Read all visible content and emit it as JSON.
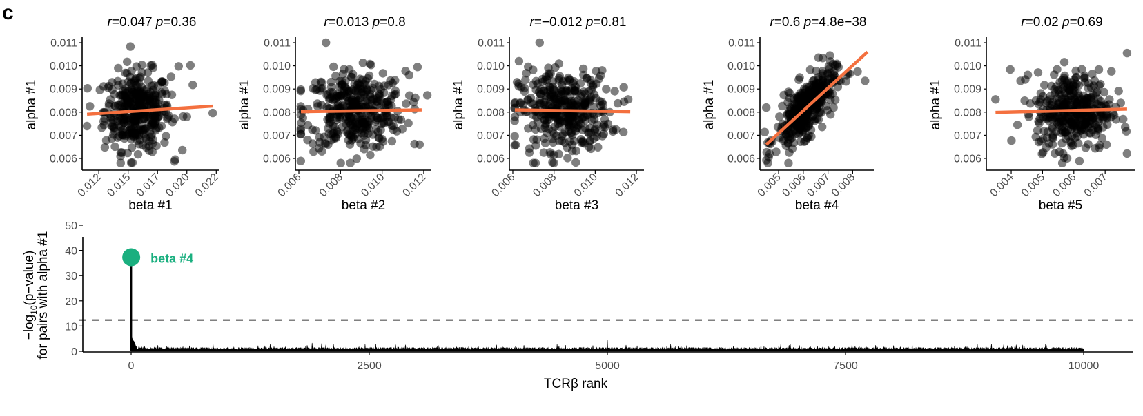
{
  "figure": {
    "panel_letter": "c"
  },
  "chart_data": [
    {
      "type": "scatter",
      "id": "panel-beta1",
      "title_r": "r",
      "title_r_value": "=0.047 ",
      "title_p": "p",
      "title_p_value": "=0.36",
      "xlabel": "beta #1",
      "ylabel": "alpha #1",
      "xlim": [
        0.0112,
        0.0226
      ],
      "ylim": [
        0.00555,
        0.01115
      ],
      "xticks": [
        0.0125,
        0.015,
        0.0175,
        0.02,
        0.0225
      ],
      "xtick_labels": [
        "0.012",
        "0.015",
        "0.017",
        "0.020",
        "0.022"
      ],
      "yticks": [
        0.006,
        0.007,
        0.008,
        0.009,
        0.01,
        0.011
      ],
      "ytick_labels": [
        "0.006",
        "0.007",
        "0.008",
        "0.009",
        "0.010",
        "0.011"
      ],
      "x_center": 0.0158,
      "x_sd": 0.0014,
      "fit": {
        "x": [
          0.0115,
          0.0222
        ],
        "y": [
          0.00791,
          0.00826
        ]
      },
      "outliers": [
        [
          0.0115,
          0.0074
        ],
        [
          0.0222,
          0.00796
        ],
        [
          0.0203,
          0.01002
        ],
        [
          0.0205,
          0.00918
        ],
        [
          0.0193,
          0.00998
        ],
        [
          0.019,
          0.00595
        ],
        [
          0.02,
          0.0078
        ]
      ],
      "r": 0.047,
      "p": 0.36
    },
    {
      "type": "scatter",
      "id": "panel-beta2",
      "title_r": "r",
      "title_r_value": "=0.013 ",
      "title_p": "p",
      "title_p_value": "=0.8",
      "xlabel": "beta #2",
      "ylabel": "alpha #1",
      "xlim": [
        0.0059,
        0.0123
      ],
      "ylim": [
        0.00555,
        0.01115
      ],
      "xticks": [
        0.006,
        0.008,
        0.01,
        0.012
      ],
      "xtick_labels": [
        "0.006",
        "0.008",
        "0.010",
        "0.012"
      ],
      "yticks": [
        0.006,
        0.007,
        0.008,
        0.009,
        0.01,
        0.011
      ],
      "ytick_labels": [
        "0.006",
        "0.007",
        "0.008",
        "0.009",
        "0.010",
        "0.011"
      ],
      "x_center": 0.0087,
      "x_sd": 0.0012,
      "fit": {
        "x": [
          0.0061,
          0.0119
        ],
        "y": [
          0.00802,
          0.0081
        ]
      },
      "outliers": [
        [
          0.0061,
          0.00705
        ],
        [
          0.0117,
          0.00995
        ],
        [
          0.0118,
          0.0066
        ],
        [
          0.0113,
          0.0096
        ],
        [
          0.0073,
          0.011
        ]
      ],
      "r": 0.013,
      "p": 0.8
    },
    {
      "type": "scatter",
      "id": "panel-beta3",
      "title_r": "r",
      "title_r_value": "=−0.012 ",
      "title_p": "p",
      "title_p_value": "=0.81",
      "xlabel": "beta #3",
      "ylabel": "alpha #1",
      "xlim": [
        0.0059,
        0.0123
      ],
      "ylim": [
        0.00555,
        0.01115
      ],
      "xticks": [
        0.006,
        0.008,
        0.01,
        0.012
      ],
      "xtick_labels": [
        "0.006",
        "0.008",
        "0.010",
        "0.012"
      ],
      "yticks": [
        0.006,
        0.007,
        0.008,
        0.009,
        0.01,
        0.011
      ],
      "ytick_labels": [
        "0.006",
        "0.007",
        "0.008",
        "0.009",
        "0.010",
        "0.011"
      ],
      "x_center": 0.0085,
      "x_sd": 0.0011,
      "fit": {
        "x": [
          0.0061,
          0.0117
        ],
        "y": [
          0.0081,
          0.00802
        ]
      },
      "outliers": [
        [
          0.0061,
          0.0078
        ],
        [
          0.0063,
          0.0102
        ],
        [
          0.0116,
          0.00855
        ],
        [
          0.0114,
          0.00845
        ],
        [
          0.0068,
          0.00625
        ],
        [
          0.0073,
          0.011
        ]
      ],
      "r": -0.012,
      "p": 0.81
    },
    {
      "type": "scatter",
      "id": "panel-beta4",
      "title_r": "r",
      "title_r_value": "=0.6 ",
      "title_p": "p",
      "title_p_value": "=4.8e−38",
      "xlabel": "beta #4",
      "ylabel": "alpha #1",
      "xlim": [
        0.0043,
        0.0088
      ],
      "ylim": [
        0.00555,
        0.01115
      ],
      "xticks": [
        0.005,
        0.006,
        0.007,
        0.008
      ],
      "xtick_labels": [
        "0.005",
        "0.006",
        "0.007",
        "0.008"
      ],
      "yticks": [
        0.006,
        0.007,
        0.008,
        0.009,
        0.01,
        0.011
      ],
      "ytick_labels": [
        "0.006",
        "0.007",
        "0.008",
        "0.009",
        "0.010",
        "0.011"
      ],
      "x_center": 0.0061,
      "x_sd": 0.0006,
      "fit": {
        "x": [
          0.0045,
          0.0086
        ],
        "y": [
          0.0066,
          0.0106
        ]
      },
      "outliers": [
        [
          0.0045,
          0.0082
        ],
        [
          0.0085,
          0.00935
        ],
        [
          0.0082,
          0.00975
        ],
        [
          0.0054,
          0.0058
        ],
        [
          0.0046,
          0.00605
        ]
      ],
      "r": 0.6,
      "p": 4.8e-38
    },
    {
      "type": "scatter",
      "id": "panel-beta5",
      "title_r": "r",
      "title_r_value": "=0.02 ",
      "title_p": "p",
      "title_p_value": "=0.69",
      "xlabel": "beta #5",
      "ylabel": "alpha #1",
      "xlim": [
        0.00325,
        0.0079
      ],
      "ylim": [
        0.00555,
        0.01115
      ],
      "xticks": [
        0.004,
        0.005,
        0.006,
        0.007
      ],
      "xtick_labels": [
        "0.004",
        "0.005",
        "0.006",
        "0.007"
      ],
      "yticks": [
        0.006,
        0.007,
        0.008,
        0.009,
        0.01,
        0.011
      ],
      "ytick_labels": [
        "0.006",
        "0.007",
        "0.008",
        "0.009",
        "0.010",
        "0.011"
      ],
      "x_center": 0.006,
      "x_sd": 0.0006,
      "fit": {
        "x": [
          0.0035,
          0.0077
        ],
        "y": [
          0.00799,
          0.00813
        ]
      },
      "outliers": [
        [
          0.0035,
          0.00855
        ],
        [
          0.0042,
          0.00745
        ],
        [
          0.0043,
          0.00935
        ],
        [
          0.0077,
          0.01055
        ],
        [
          0.0075,
          0.0084
        ]
      ],
      "r": 0.02,
      "p": 0.69
    },
    {
      "type": "line",
      "id": "panel-rank",
      "xlabel": "TCRβ rank",
      "ylabel_line1_pre": "−log",
      "ylabel_line1_sub": "10",
      "ylabel_line1_post": "(p−value)",
      "ylabel_line2": "for pairs with alpha #1",
      "xlim": [
        -480,
        10540
      ],
      "ylim": [
        0,
        50
      ],
      "xticks": [
        0,
        2500,
        5000,
        7500,
        10000
      ],
      "xtick_labels": [
        "0",
        "2500",
        "5000",
        "7500",
        "10000"
      ],
      "yticks": [
        0,
        10,
        20,
        30,
        40,
        50
      ],
      "ytick_labels": [
        "0",
        "10",
        "20",
        "30",
        "40",
        "50"
      ],
      "n_points": 10000,
      "baseline_mean": 1.0,
      "threshold": 12.4,
      "highlight": {
        "label": "beta #4",
        "x": 1,
        "y": 37.3,
        "color": "#1aaf7f"
      },
      "notable_peaks": [
        [
          5000,
          4.5
        ],
        [
          1900,
          3.3
        ],
        [
          9600,
          3.0
        ],
        [
          2000,
          3.1
        ]
      ]
    }
  ],
  "colors": {
    "point": "#000000",
    "point_opacity": 0.5,
    "fit_line": "#f4703f",
    "highlight": "#1aaf7f",
    "axis": "#000000",
    "tick_label": "#4d4d4d"
  }
}
